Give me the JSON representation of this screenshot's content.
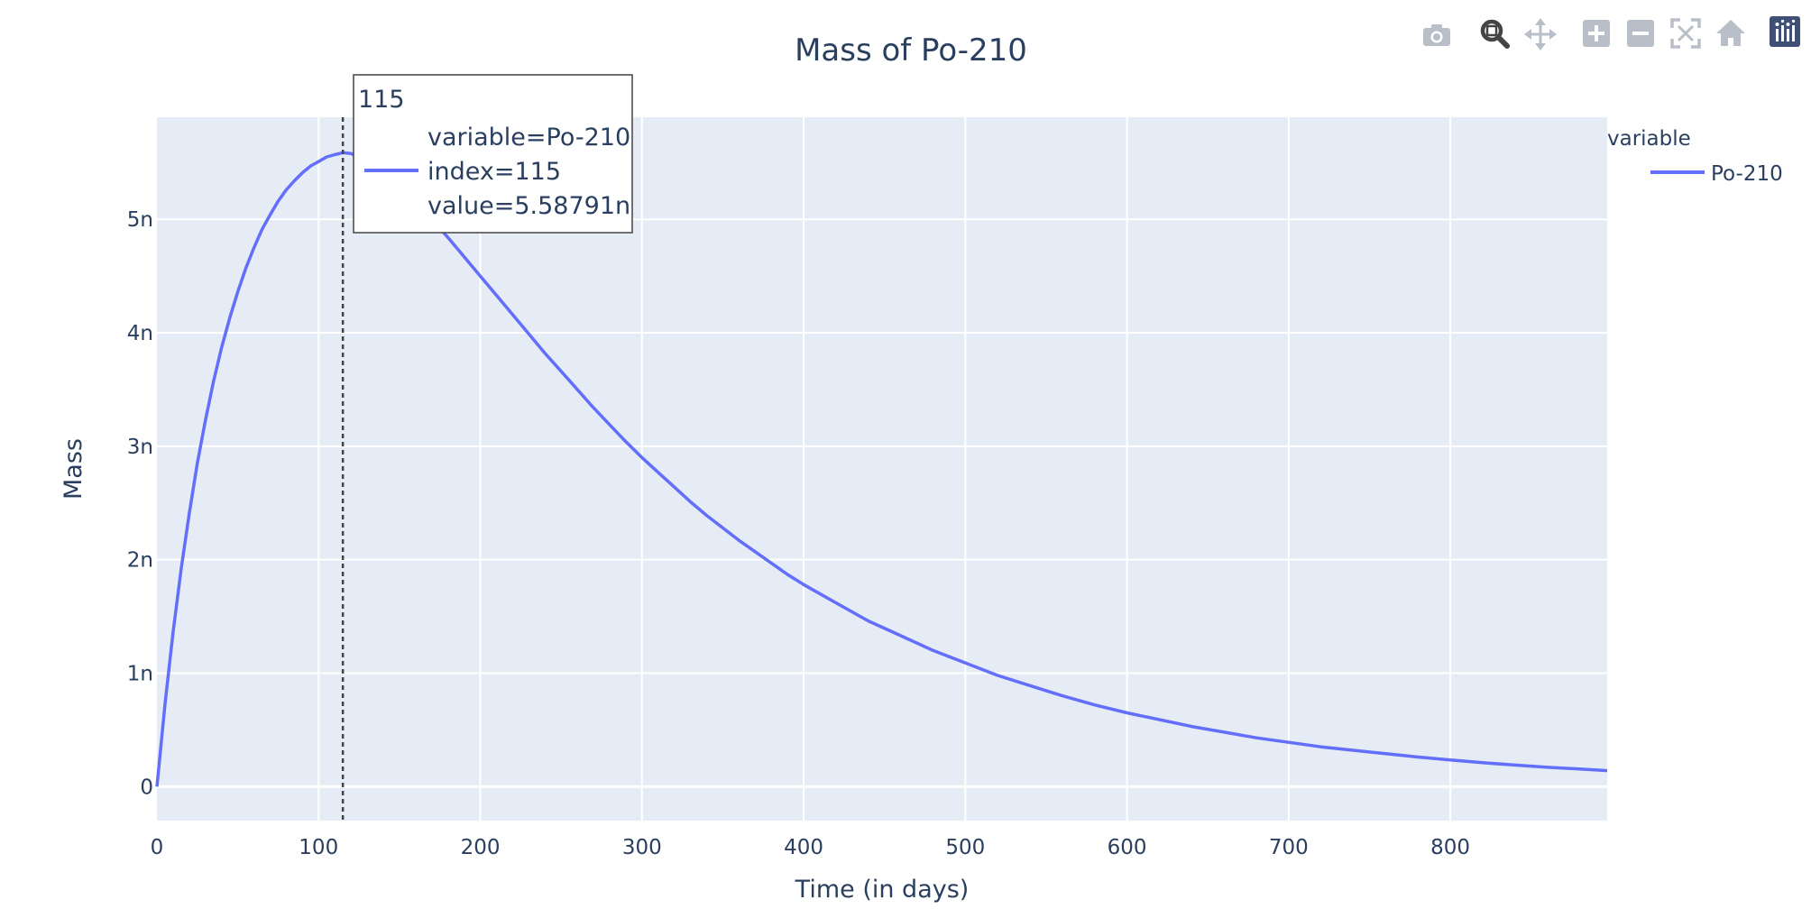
{
  "toolbar": {
    "items": [
      {
        "name": "camera-icon",
        "label": "Download plot as a png"
      },
      {
        "name": "zoom-icon",
        "label": "Zoom"
      },
      {
        "name": "pan-icon",
        "label": "Pan"
      },
      {
        "name": "zoom-in-icon",
        "label": "Zoom in"
      },
      {
        "name": "zoom-out-icon",
        "label": "Zoom out"
      },
      {
        "name": "autoscale-icon",
        "label": "Autoscale"
      },
      {
        "name": "home-icon",
        "label": "Reset axes"
      },
      {
        "name": "plotly-logo-icon",
        "label": "Produced with Plotly"
      }
    ],
    "active": "zoom-icon"
  },
  "colors": {
    "series": "#636efa",
    "plot_bg": "#e5ecf6",
    "grid": "#ffffff",
    "text": "#2a3f5f",
    "hover_line": "#444444",
    "modebar_icon": "#b8bfc9",
    "modebar_active": "#444444",
    "logo": "#3f4f75"
  },
  "hover": {
    "x_label": "115",
    "lines": [
      "variable=Po-210",
      "index=115",
      "value=5.58791n"
    ]
  },
  "chart_data": {
    "type": "line",
    "title": "Mass of Po-210",
    "xlabel": "Time (in days)",
    "ylabel": "Mass",
    "xlim": [
      0,
      897
    ],
    "ylim": [
      -3e-10,
      5.9e-09
    ],
    "x_ticks": [
      0,
      100,
      200,
      300,
      400,
      500,
      600,
      700,
      800
    ],
    "x_tick_labels": [
      "0",
      "100",
      "200",
      "300",
      "400",
      "500",
      "600",
      "700",
      "800"
    ],
    "y_ticks": [
      0,
      1e-09,
      2e-09,
      3e-09,
      4e-09,
      5e-09
    ],
    "y_tick_labels": [
      "0",
      "1n",
      "2n",
      "3n",
      "4n",
      "5n"
    ],
    "grid": true,
    "legend": {
      "title": "variable",
      "placement": "right",
      "entries": [
        "Po-210"
      ]
    },
    "series": [
      {
        "name": "Po-210",
        "x": [
          0,
          5,
          10,
          15,
          20,
          25,
          30,
          35,
          40,
          45,
          50,
          55,
          60,
          65,
          70,
          75,
          80,
          85,
          90,
          95,
          100,
          105,
          110,
          115,
          120,
          130,
          140,
          150,
          160,
          170,
          180,
          190,
          200,
          210,
          220,
          230,
          240,
          250,
          260,
          270,
          280,
          290,
          300,
          310,
          320,
          330,
          340,
          350,
          360,
          370,
          380,
          390,
          400,
          420,
          440,
          460,
          480,
          500,
          520,
          540,
          560,
          580,
          600,
          620,
          640,
          660,
          680,
          700,
          720,
          740,
          760,
          780,
          800,
          820,
          840,
          860,
          880,
          897
        ],
        "values": [
          0,
          7.3e-10,
          1.36e-09,
          1.92e-09,
          2.41e-09,
          2.85e-09,
          3.23e-09,
          3.57e-09,
          3.87e-09,
          4.13e-09,
          4.36e-09,
          4.57e-09,
          4.75e-09,
          4.91e-09,
          5.04e-09,
          5.16e-09,
          5.26e-09,
          5.34e-09,
          5.41e-09,
          5.47e-09,
          5.51e-09,
          5.55e-09,
          5.57e-09,
          5.588e-09,
          5.58e-09,
          5.52e-09,
          5.42e-09,
          5.3e-09,
          5.15e-09,
          5e-09,
          4.84e-09,
          4.67e-09,
          4.5e-09,
          4.33e-09,
          4.16e-09,
          3.99e-09,
          3.82e-09,
          3.66e-09,
          3.5e-09,
          3.34e-09,
          3.19e-09,
          3.04e-09,
          2.9e-09,
          2.77e-09,
          2.64e-09,
          2.51e-09,
          2.39e-09,
          2.28e-09,
          2.17e-09,
          2.07e-09,
          1.97e-09,
          1.87e-09,
          1.78e-09,
          1.62e-09,
          1.46e-09,
          1.33e-09,
          1.2e-09,
          1.09e-09,
          9.8e-10,
          8.9e-10,
          8e-10,
          7.2e-10,
          6.5e-10,
          5.9e-10,
          5.3e-10,
          4.8e-10,
          4.3e-10,
          3.9e-10,
          3.5e-10,
          3.2e-10,
          2.9e-10,
          2.6e-10,
          2.35e-10,
          2.1e-10,
          1.9e-10,
          1.7e-10,
          1.55e-10,
          1.4e-10
        ]
      }
    ]
  }
}
